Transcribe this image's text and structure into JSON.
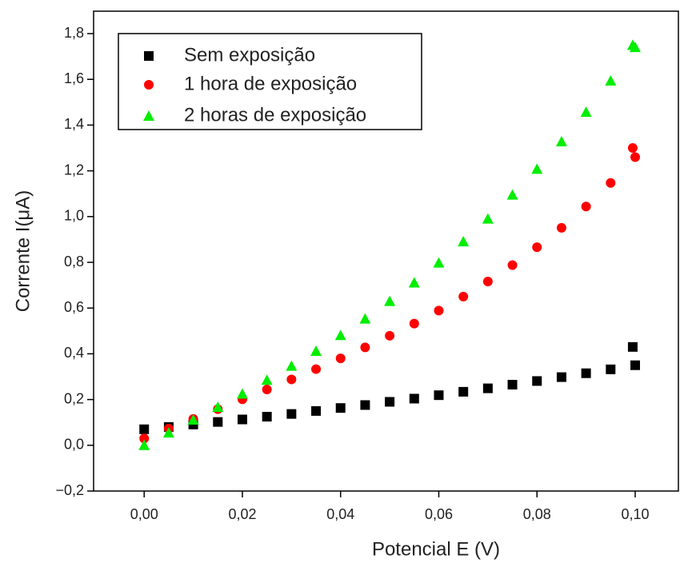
{
  "chart_data": {
    "type": "scatter",
    "xlabel": "Potencial E (V)",
    "ylabel": "Corrente I(μA)",
    "xlim": [
      -0.0103,
      0.1088
    ],
    "ylim": [
      -0.2,
      1.898
    ],
    "xticks": [
      {
        "value": 0,
        "label": "0,00"
      },
      {
        "value": 0.02,
        "label": "0,02"
      },
      {
        "value": 0.04,
        "label": "0,04"
      },
      {
        "value": 0.06,
        "label": "0,06"
      },
      {
        "value": 0.08,
        "label": "0,08"
      },
      {
        "value": 0.1,
        "label": "0,10"
      }
    ],
    "yticks": [
      {
        "value": -0.2,
        "label": "−0,2"
      },
      {
        "value": 0,
        "label": "0,0"
      },
      {
        "value": 0.2,
        "label": "0,2"
      },
      {
        "value": 0.4,
        "label": "0,4"
      },
      {
        "value": 0.6,
        "label": "0,6"
      },
      {
        "value": 0.8,
        "label": "0,8"
      },
      {
        "value": 1.0,
        "label": "1,0"
      },
      {
        "value": 1.2,
        "label": "1,2"
      },
      {
        "value": 1.4,
        "label": "1,4"
      },
      {
        "value": 1.6,
        "label": "1,6"
      },
      {
        "value": 1.8,
        "label": "1,8"
      }
    ],
    "legend": "top-left",
    "x": [
      0,
      0.005,
      0.01,
      0.015,
      0.02,
      0.025,
      0.03,
      0.035,
      0.04,
      0.045,
      0.05,
      0.055,
      0.06,
      0.065,
      0.07,
      0.075,
      0.08,
      0.085,
      0.09,
      0.095,
      0.1,
      0.0995
    ],
    "series": [
      {
        "name": "Sem exposição",
        "color": "#000000",
        "marker": "square",
        "values": [
          0.07,
          0.08,
          0.091,
          0.102,
          0.113,
          0.125,
          0.137,
          0.15,
          0.163,
          0.176,
          0.19,
          0.204,
          0.219,
          0.234,
          0.249,
          0.265,
          0.281,
          0.298,
          0.315,
          0.332,
          0.35,
          0.43
        ]
      },
      {
        "name": "1 hora de exposição",
        "color": "#ff0000",
        "marker": "circle",
        "values": [
          0.03,
          0.073,
          0.115,
          0.158,
          0.201,
          0.244,
          0.288,
          0.333,
          0.38,
          0.428,
          0.479,
          0.532,
          0.589,
          0.65,
          0.716,
          0.788,
          0.866,
          0.951,
          1.044,
          1.147,
          1.26,
          1.3
        ]
      },
      {
        "name": "2 horas de exposição",
        "color": "#00ee00",
        "marker": "triangle",
        "values": [
          0,
          0.055,
          0.111,
          0.167,
          0.225,
          0.285,
          0.347,
          0.412,
          0.481,
          0.553,
          0.63,
          0.711,
          0.798,
          0.891,
          0.99,
          1.095,
          1.208,
          1.328,
          1.457,
          1.594,
          1.74,
          1.75
        ]
      }
    ]
  }
}
